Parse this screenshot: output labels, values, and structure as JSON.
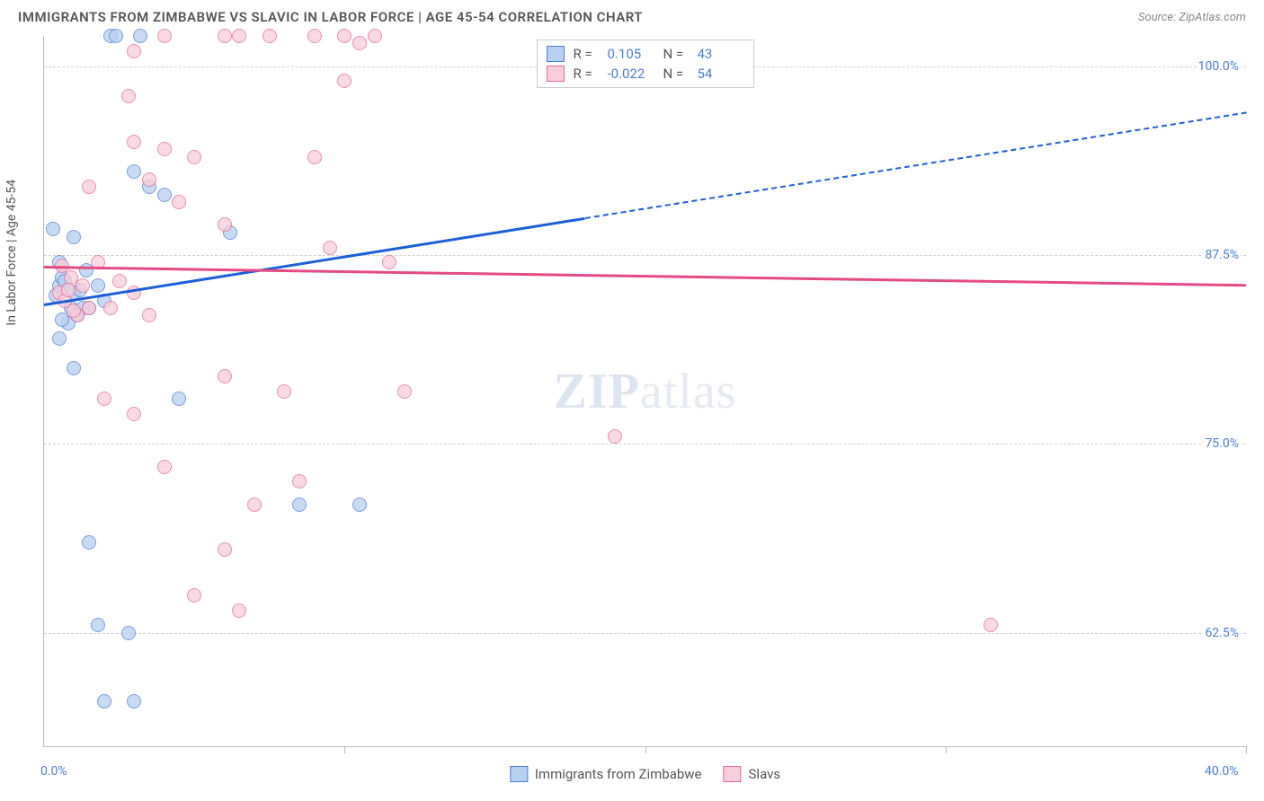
{
  "header": {
    "title": "IMMIGRANTS FROM ZIMBABWE VS SLAVIC IN LABOR FORCE | AGE 45-54 CORRELATION CHART",
    "source": "Source: ZipAtlas.com"
  },
  "watermark": {
    "part1": "ZIP",
    "part2": "atlas"
  },
  "chart": {
    "type": "scatter-correlation",
    "yaxis_title": "In Labor Force | Age 45-54",
    "xlim": [
      0,
      40
    ],
    "ylim": [
      55,
      102
    ],
    "x_ticks_pct": [
      0,
      10,
      20,
      30,
      40
    ],
    "y_ticks": [
      {
        "v": 62.5,
        "label": "62.5%"
      },
      {
        "v": 75.0,
        "label": "75.0%"
      },
      {
        "v": 87.5,
        "label": "87.5%"
      },
      {
        "v": 100.0,
        "label": "100.0%"
      }
    ],
    "x_labels": [
      {
        "v": 0,
        "label": "0.0%"
      },
      {
        "v": 40,
        "label": "40.0%"
      }
    ],
    "series": [
      {
        "name": "Immigrants from Zimbabwe",
        "key": "zimbabwe",
        "fill": "#b8d0f0",
        "stroke": "#4a7fd8",
        "line_color": "#1d5fd6",
        "R": "0.105",
        "N": "43",
        "trend": {
          "x1": 0,
          "y1": 84.3,
          "x2": 40,
          "y2": 97.0,
          "solid_end_x": 18
        },
        "points": [
          [
            0.4,
            84.8
          ],
          [
            0.5,
            85.5
          ],
          [
            0.6,
            86.0
          ],
          [
            0.8,
            83.0
          ],
          [
            0.9,
            84.0
          ],
          [
            1.0,
            85.0
          ],
          [
            1.1,
            83.5
          ],
          [
            1.2,
            85.2
          ],
          [
            1.3,
            84.0
          ],
          [
            1.4,
            86.5
          ],
          [
            0.5,
            87.0
          ],
          [
            0.6,
            83.2
          ],
          [
            0.7,
            85.8
          ],
          [
            1.0,
            88.7
          ],
          [
            1.5,
            84.0
          ],
          [
            1.8,
            85.5
          ],
          [
            2.0,
            84.5
          ],
          [
            0.3,
            89.2
          ],
          [
            2.2,
            102.0
          ],
          [
            3.2,
            102.0
          ],
          [
            2.4,
            102.0
          ],
          [
            3.0,
            93.0
          ],
          [
            4.0,
            91.5
          ],
          [
            3.5,
            92.0
          ],
          [
            6.2,
            89.0
          ],
          [
            0.5,
            82.0
          ],
          [
            1.0,
            80.0
          ],
          [
            1.5,
            68.5
          ],
          [
            1.8,
            63.0
          ],
          [
            2.8,
            62.5
          ],
          [
            4.5,
            78.0
          ],
          [
            8.5,
            71.0
          ],
          [
            10.5,
            71.0
          ],
          [
            2.0,
            58.0
          ],
          [
            3.0,
            58.0
          ]
        ]
      },
      {
        "name": "Slavs",
        "key": "slavs",
        "fill": "#f7cdd9",
        "stroke": "#e76a94",
        "line_color": "#e44a83",
        "R": "-0.022",
        "N": "54",
        "trend": {
          "x1": 0,
          "y1": 86.8,
          "x2": 40,
          "y2": 85.6,
          "solid_end_x": 40
        },
        "points": [
          [
            0.5,
            85.0
          ],
          [
            0.7,
            84.5
          ],
          [
            0.9,
            86.0
          ],
          [
            1.1,
            83.5
          ],
          [
            1.3,
            85.5
          ],
          [
            1.5,
            84.0
          ],
          [
            0.6,
            86.8
          ],
          [
            0.8,
            85.2
          ],
          [
            1.0,
            83.8
          ],
          [
            1.8,
            87.0
          ],
          [
            2.2,
            84.0
          ],
          [
            2.5,
            85.8
          ],
          [
            3.0,
            85.0
          ],
          [
            3.5,
            83.5
          ],
          [
            3.0,
            101.0
          ],
          [
            4.0,
            102.0
          ],
          [
            6.0,
            102.0
          ],
          [
            6.5,
            102.0
          ],
          [
            7.5,
            102.0
          ],
          [
            9.0,
            102.0
          ],
          [
            10.0,
            102.0
          ],
          [
            10.5,
            101.5
          ],
          [
            2.8,
            98.0
          ],
          [
            3.0,
            95.0
          ],
          [
            4.0,
            94.5
          ],
          [
            5.0,
            94.0
          ],
          [
            9.0,
            94.0
          ],
          [
            10.0,
            99.0
          ],
          [
            11.0,
            102.0
          ],
          [
            6.0,
            89.5
          ],
          [
            9.5,
            88.0
          ],
          [
            11.5,
            87.0
          ],
          [
            1.5,
            92.0
          ],
          [
            3.5,
            92.5
          ],
          [
            4.5,
            91.0
          ],
          [
            2.0,
            78.0
          ],
          [
            3.0,
            77.0
          ],
          [
            4.0,
            73.5
          ],
          [
            6.0,
            79.5
          ],
          [
            8.0,
            78.5
          ],
          [
            12.0,
            78.5
          ],
          [
            5.0,
            65.0
          ],
          [
            6.5,
            64.0
          ],
          [
            6.0,
            68.0
          ],
          [
            7.0,
            71.0
          ],
          [
            8.5,
            72.5
          ],
          [
            19.0,
            75.5
          ],
          [
            31.5,
            63.0
          ]
        ]
      }
    ],
    "bottom_legend": [
      {
        "key": "zimbabwe",
        "label": "Immigrants from Zimbabwe"
      },
      {
        "key": "slavs",
        "label": "Slavs"
      }
    ]
  }
}
